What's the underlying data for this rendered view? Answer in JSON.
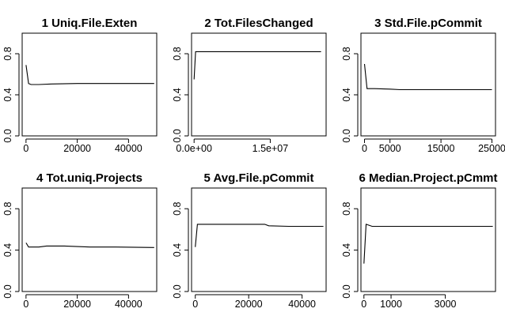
{
  "chart_data": [
    {
      "type": "line",
      "title": "1  Uniq.File.Exten",
      "xlabel": "",
      "ylabel": "",
      "xlim": [
        -1500,
        51000
      ],
      "ylim": [
        0,
        1.0
      ],
      "xticks": [
        0,
        20000,
        40000
      ],
      "xtick_labels": [
        "0",
        "20000",
        "40000"
      ],
      "yticks": [
        0.0,
        0.4,
        0.8
      ],
      "ytick_labels": [
        "0.0",
        "0.4",
        "0.8"
      ],
      "series": [
        {
          "x": [
            0,
            1000,
            2000,
            5000,
            10000,
            20000,
            30000,
            40000,
            50000
          ],
          "y": [
            0.69,
            0.51,
            0.5,
            0.5,
            0.505,
            0.51,
            0.51,
            0.51,
            0.51
          ]
        }
      ]
    },
    {
      "type": "line",
      "title": "2  Tot.FilesChanged",
      "xlabel": "",
      "ylabel": "",
      "xlim": [
        -500000,
        26000000
      ],
      "ylim": [
        0,
        1.0
      ],
      "xticks": [
        0,
        15000000
      ],
      "xtick_labels": [
        "0.0e+00",
        "1.5e+07"
      ],
      "yticks": [
        0.0,
        0.4,
        0.8
      ],
      "ytick_labels": [
        "0.0",
        "0.4",
        "0.8"
      ],
      "series": [
        {
          "x": [
            0,
            300000,
            1000000,
            10000000,
            25000000
          ],
          "y": [
            0.55,
            0.82,
            0.82,
            0.82,
            0.82
          ]
        }
      ]
    },
    {
      "type": "line",
      "title": "3  Std.File.pCommit",
      "xlabel": "",
      "ylabel": "",
      "xlim": [
        -700,
        25700
      ],
      "ylim": [
        0,
        1.0
      ],
      "xticks": [
        0,
        5000,
        15000,
        25000
      ],
      "xtick_labels": [
        "0",
        "5000",
        "15000",
        "25000"
      ],
      "yticks": [
        0.0,
        0.4,
        0.8
      ],
      "ytick_labels": [
        "0.0",
        "0.4",
        "0.8"
      ],
      "series": [
        {
          "x": [
            0,
            500,
            2000,
            5000,
            7000,
            15000,
            25000
          ],
          "y": [
            0.7,
            0.46,
            0.46,
            0.455,
            0.45,
            0.45,
            0.45
          ]
        }
      ]
    },
    {
      "type": "line",
      "title": "4  Tot.uniq.Projects",
      "xlabel": "",
      "ylabel": "",
      "xlim": [
        -1500,
        51000
      ],
      "ylim": [
        0,
        1.0
      ],
      "xticks": [
        0,
        20000,
        40000
      ],
      "xtick_labels": [
        "0",
        "20000",
        "40000"
      ],
      "yticks": [
        0.0,
        0.4,
        0.8
      ],
      "ytick_labels": [
        "0.0",
        "0.4",
        "0.8"
      ],
      "series": [
        {
          "x": [
            0,
            1000,
            5000,
            8000,
            15000,
            25000,
            35000,
            50000
          ],
          "y": [
            0.47,
            0.43,
            0.43,
            0.44,
            0.44,
            0.43,
            0.43,
            0.425
          ]
        }
      ]
    },
    {
      "type": "line",
      "title": "5  Avg.File.pCommit",
      "xlabel": "",
      "ylabel": "",
      "xlim": [
        -1400,
        49000
      ],
      "ylim": [
        0,
        1.0
      ],
      "xticks": [
        0,
        20000,
        40000
      ],
      "xtick_labels": [
        "0",
        "20000",
        "40000"
      ],
      "yticks": [
        0.0,
        0.4,
        0.8
      ],
      "ytick_labels": [
        "0.0",
        "0.4",
        "0.8"
      ],
      "series": [
        {
          "x": [
            0,
            800,
            3000,
            8000,
            15000,
            26000,
            27500,
            35000,
            48000
          ],
          "y": [
            0.43,
            0.65,
            0.65,
            0.65,
            0.65,
            0.65,
            0.635,
            0.63,
            0.63
          ]
        }
      ]
    },
    {
      "type": "line",
      "title": "6  Median.Project.pCmmt",
      "xlabel": "",
      "ylabel": "",
      "xlim": [
        -110,
        4850
      ],
      "ylim": [
        0,
        1.0
      ],
      "xticks": [
        0,
        1000,
        3000
      ],
      "xtick_labels": [
        "0",
        "1000",
        "3000"
      ],
      "yticks": [
        0.0,
        0.4,
        0.8
      ],
      "ytick_labels": [
        "0.0",
        "0.4",
        "0.8"
      ],
      "series": [
        {
          "x": [
            0,
            80,
            300,
            1000,
            2500,
            4750
          ],
          "y": [
            0.27,
            0.65,
            0.63,
            0.63,
            0.63,
            0.63
          ]
        }
      ]
    }
  ]
}
